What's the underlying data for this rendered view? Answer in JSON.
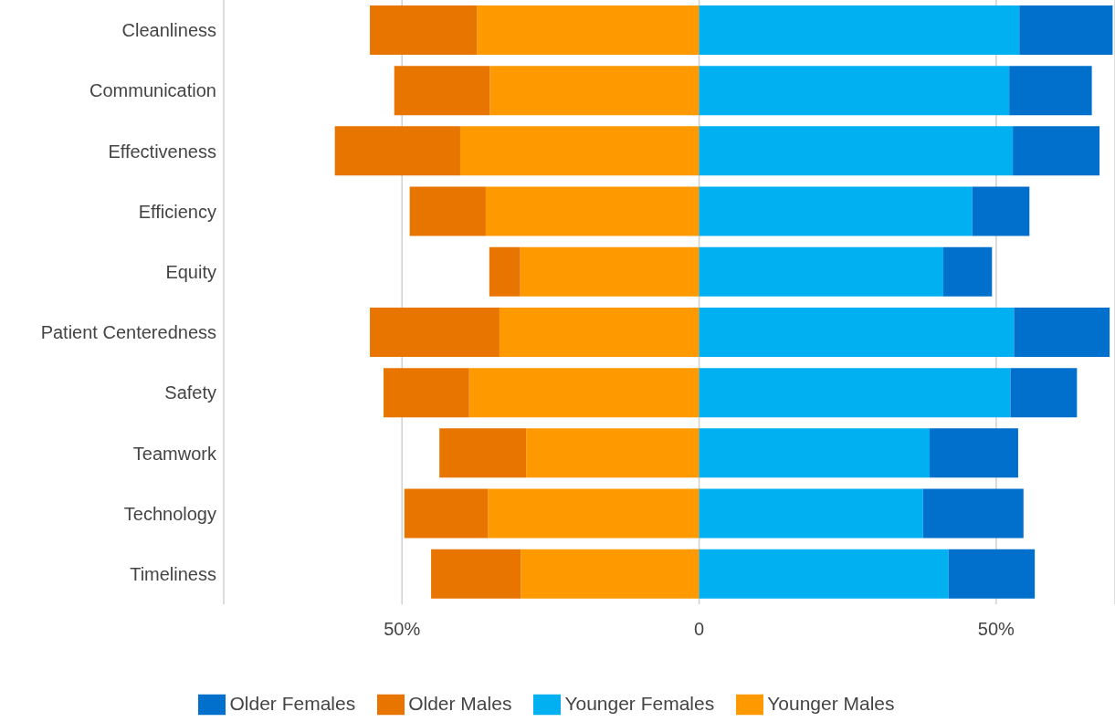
{
  "chart_data": {
    "type": "bar",
    "orientation": "horizontal",
    "stacked": true,
    "categories": [
      "Cleanliness",
      "Communication",
      "Effectiveness",
      "Efficiency",
      "Equity",
      "Patient Centeredness",
      "Safety",
      "Teamwork",
      "Technology",
      "Timeliness"
    ],
    "series": [
      {
        "name": "Younger Males",
        "color": "#ff9900",
        "values": [
          -37.4,
          -35.2,
          -40.2,
          -35.9,
          -30.1,
          -33.6,
          -38.7,
          -29.1,
          -35.5,
          -30.0
        ]
      },
      {
        "name": "Older Males",
        "color": "#e87500",
        "values": [
          -18.0,
          -16.1,
          -21.1,
          -12.8,
          -5.2,
          -21.8,
          -14.4,
          -14.6,
          -14.1,
          -15.1
        ]
      },
      {
        "name": "Younger Females",
        "color": "#00b0f0",
        "values": [
          53.9,
          52.2,
          52.8,
          46.0,
          41.1,
          53.0,
          52.4,
          38.8,
          37.7,
          42.0
        ]
      },
      {
        "name": "Older Females",
        "color": "#0070cc",
        "values": [
          15.7,
          13.9,
          14.6,
          9.6,
          8.2,
          16.1,
          11.2,
          14.9,
          16.9,
          14.5
        ]
      }
    ],
    "xlim": [
      -80,
      70
    ],
    "xticks": [
      {
        "value": -50,
        "label": "50%"
      },
      0,
      {
        "value": 50,
        "label": "50%"
      }
    ],
    "grid": "x",
    "legend": "bottom"
  }
}
